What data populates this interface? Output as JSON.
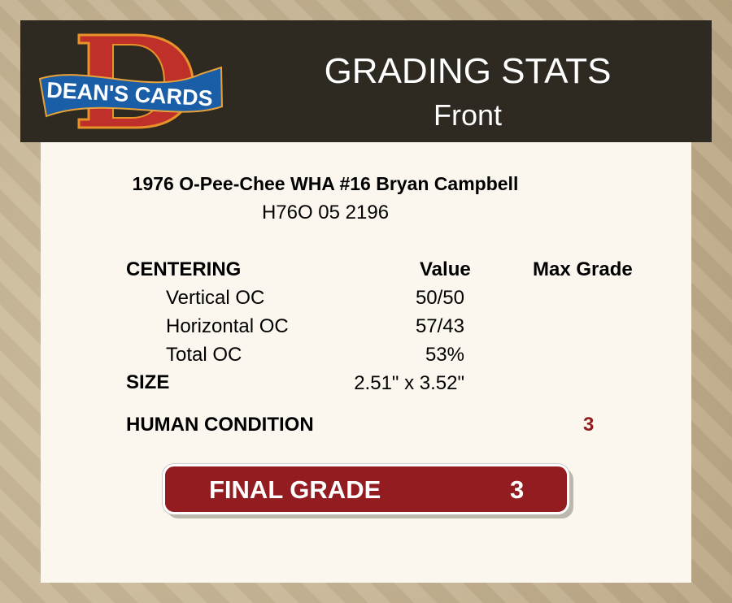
{
  "logo": {
    "text": "DEAN'S CARDS",
    "letter": "D"
  },
  "header": {
    "title": "GRADING STATS",
    "subtitle": "Front"
  },
  "card": {
    "name": "1976 O-Pee-Chee WHA #16 Bryan Campbell",
    "cert": "H76O 05 2196"
  },
  "columns": {
    "section": "CENTERING",
    "value": "Value",
    "max_grade": "Max Grade"
  },
  "centering": [
    {
      "label": "Vertical OC",
      "value": "50/50"
    },
    {
      "label": "Horizontal OC",
      "value": "57/43"
    },
    {
      "label": "Total OC",
      "value": "53%"
    }
  ],
  "size": {
    "label": "SIZE",
    "value": "2.51\" x 3.52\""
  },
  "human": {
    "label": "HUMAN CONDITION",
    "value": "3"
  },
  "final": {
    "label": "FINAL GRADE",
    "value": "3"
  },
  "colors": {
    "header_bg": "#2e2a22",
    "accent": "#921c1f",
    "panel": "#fbf7ee"
  }
}
